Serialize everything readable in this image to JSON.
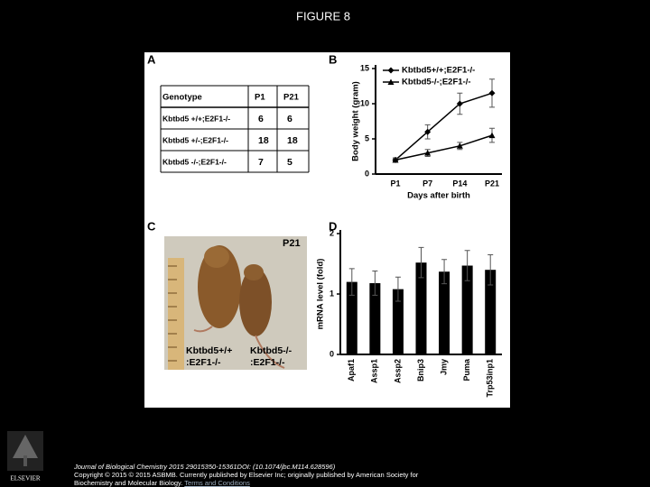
{
  "header": {
    "title": "FIGURE 8"
  },
  "panel_labels": [
    "A",
    "B",
    "C",
    "D"
  ],
  "table": {
    "columns": [
      "Genotype",
      "P1",
      "P21"
    ],
    "rows": [
      [
        "Kbtbd5 +/+;E2F1-/-",
        "6",
        "6"
      ],
      [
        "Kbtbd5 +/-;E2F1-/-",
        "18",
        "18"
      ],
      [
        "Kbtbd5 -/-;E2F1-/-",
        "7",
        "5"
      ]
    ]
  },
  "photo": {
    "age": "P21",
    "left_label": [
      "Kbtbd5+/+",
      ":E2F1-/-"
    ],
    "right_label": [
      "Kbtbd5-/-",
      ":E2F1-/-"
    ]
  },
  "chart_data": [
    {
      "type": "line",
      "x_label": "Days after birth",
      "y_label": "Body weight (gram)",
      "categories": [
        "P1",
        "P7",
        "P14",
        "P21"
      ],
      "ylim": [
        0,
        15
      ],
      "yticks": [
        0,
        5,
        10,
        15
      ],
      "series": [
        {
          "name": "Kbtbd5+/+;E2F1-/-",
          "color": "#000000",
          "values": [
            2,
            6,
            10,
            11.5
          ],
          "errors": [
            0.3,
            1,
            1.5,
            2
          ]
        },
        {
          "name": "Kbtbd5-/-;E2F1-/-",
          "color": "#000000",
          "values": [
            2,
            3,
            4,
            5.5
          ],
          "errors": [
            0.2,
            0.5,
            0.5,
            1
          ]
        }
      ]
    },
    {
      "type": "bar",
      "y_label": "mRNA level (fold)",
      "categories": [
        "Apaf1",
        "Assp1",
        "Assp2",
        "Bnip3",
        "Jmy",
        "Puma",
        "Trp53inp1"
      ],
      "ylim": [
        0,
        2
      ],
      "yticks": [
        0,
        1,
        2
      ],
      "color": "#000000",
      "values": [
        1.2,
        1.18,
        1.08,
        1.52,
        1.37,
        1.47,
        1.4
      ],
      "errors": [
        0.22,
        0.2,
        0.2,
        0.25,
        0.2,
        0.25,
        0.25
      ]
    }
  ],
  "footer": {
    "citation": "Journal of Biological Chemistry 2015 29015350-15361DOI: (10.1074/jbc.M114.628596)",
    "copyright": "Copyright © 2015 © 2015 ASBMB. Currently published by Elsevier Inc; originally published by American Society for Biochemistry and Molecular Biology.",
    "link": "Terms and Conditions",
    "publisher": "ELSEVIER"
  }
}
